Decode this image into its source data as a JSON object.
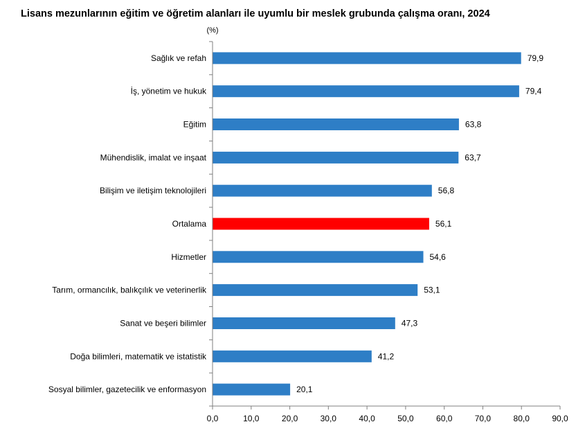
{
  "chart_data": {
    "type": "bar",
    "orientation": "horizontal",
    "title": "Lisans mezunlarının eğitim ve öğretim alanları ile uyumlu bir meslek grubunda çalışma oranı, 2024",
    "unit": "(%)",
    "xlabel": "",
    "ylabel": "",
    "xlim": [
      0,
      90
    ],
    "x_ticks": [
      "0,0",
      "10,0",
      "20,0",
      "30,0",
      "40,0",
      "50,0",
      "60,0",
      "70,0",
      "80,0",
      "90,0"
    ],
    "grid": false,
    "legend": "none",
    "colors": {
      "default": "#2E7EC6",
      "highlight": "#FF0000"
    },
    "categories": [
      "Sağlık ve refah",
      "İş, yönetim ve hukuk",
      "Eğitim",
      "Mühendislik, imalat ve inşaat",
      "Bilişim ve iletişim teknolojileri",
      "Ortalama",
      "Hizmetler",
      "Tarım, ormancılık, balıkçılık ve veterinerlik",
      "Sanat ve beşeri bilimler",
      "Doğa bilimleri, matematik ve istatistik",
      "Sosyal bilimler, gazetecilik ve enformasyon"
    ],
    "values": [
      79.9,
      79.4,
      63.8,
      63.7,
      56.8,
      56.1,
      54.6,
      53.1,
      47.3,
      41.2,
      20.1
    ],
    "value_labels": [
      "79,9",
      "79,4",
      "63,8",
      "63,7",
      "56,8",
      "56,1",
      "54,6",
      "53,1",
      "47,3",
      "41,2",
      "20,1"
    ],
    "highlight_category": "Ortalama"
  }
}
